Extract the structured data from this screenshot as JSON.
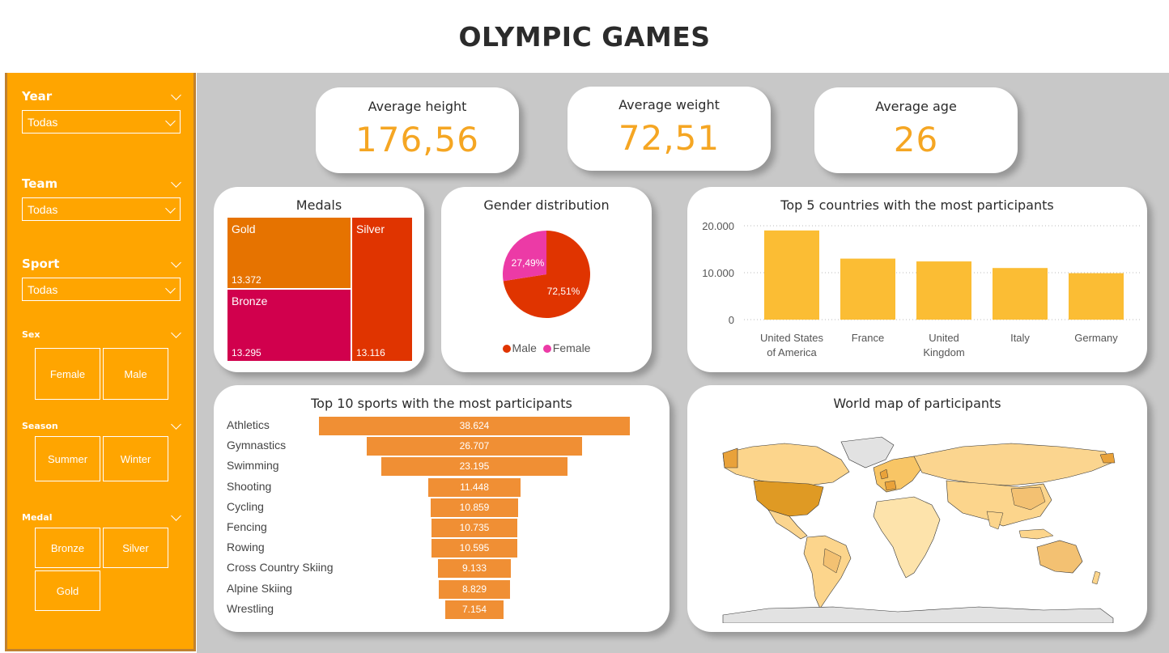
{
  "page": {
    "title": "OLYMPIC GAMES"
  },
  "filters": {
    "year": {
      "label": "Year",
      "value": "Todas"
    },
    "team": {
      "label": "Team",
      "value": "Todas"
    },
    "sport": {
      "label": "Sport",
      "value": "Todas"
    },
    "sex": {
      "label": "Sex",
      "options": [
        "Female",
        "Male"
      ]
    },
    "season": {
      "label": "Season",
      "options": [
        "Summer",
        "Winter"
      ]
    },
    "medal": {
      "label": "Medal",
      "options": [
        "Bronze",
        "Silver",
        "Gold"
      ]
    }
  },
  "kpis": {
    "height": {
      "label": "Average height",
      "value": "176,56"
    },
    "weight": {
      "label": "Average weight",
      "value": "72,51"
    },
    "age": {
      "label": "Average age",
      "value": "26"
    }
  },
  "medals": {
    "title": "Medals",
    "items": [
      {
        "name": "Gold",
        "value": "13.372",
        "color": "#e67300"
      },
      {
        "name": "Silver",
        "value": "13.116",
        "color": "#e03400"
      },
      {
        "name": "Bronze",
        "value": "13.295",
        "color": "#d1004d"
      }
    ]
  },
  "gender": {
    "title": "Gender distribution",
    "male_label": "Male",
    "female_label": "Female",
    "male_pct": "72,51%",
    "female_pct": "27,49%",
    "male_value": 72.51,
    "female_value": 27.49,
    "male_color": "#e03400",
    "female_color": "#ec3aa6"
  },
  "top5": {
    "title": "Top 5 countries with the most participants",
    "chart_data": {
      "type": "bar",
      "categories": [
        "United States of America",
        "France",
        "United Kingdom",
        "Italy",
        "Germany"
      ],
      "values": [
        19000,
        13000,
        12400,
        11000,
        9900
      ],
      "ylim": [
        0,
        20000
      ],
      "yticks": [
        "0",
        "10.000",
        "20.000"
      ],
      "color": "#fbbd34",
      "grid": true
    }
  },
  "sports": {
    "title": "Top 10 sports with the most participants",
    "chart_data": {
      "type": "bar",
      "categories": [
        "Athletics",
        "Gymnastics",
        "Swimming",
        "Shooting",
        "Cycling",
        "Fencing",
        "Rowing",
        "Cross Country Skiing",
        "Alpine Skiing",
        "Wrestling"
      ],
      "values": [
        38624,
        26707,
        23195,
        11448,
        10859,
        10735,
        10595,
        9133,
        8829,
        7154
      ],
      "labels": [
        "38.624",
        "26.707",
        "23.195",
        "11.448",
        "10.859",
        "10.735",
        "10.595",
        "9.133",
        "8.829",
        "7.154"
      ],
      "color": "#f08f34"
    }
  },
  "map": {
    "title": "World map of participants"
  }
}
